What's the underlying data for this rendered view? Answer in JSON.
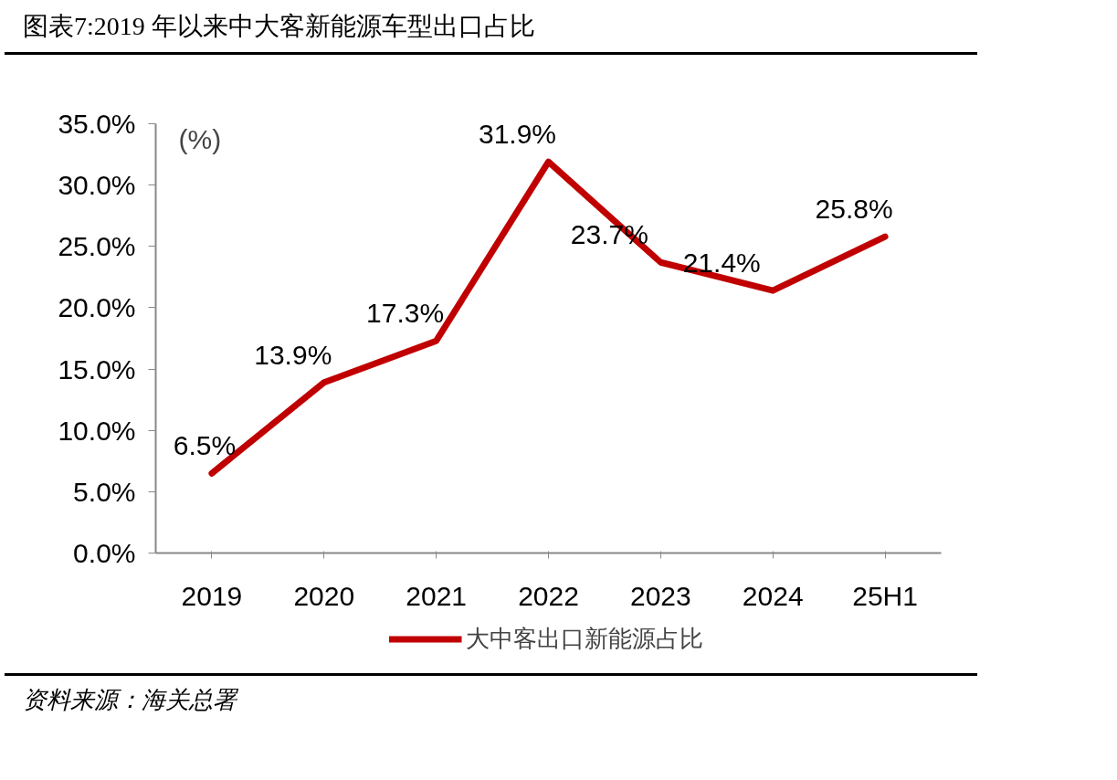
{
  "chart_data": {
    "type": "line",
    "title": "图表7:2019 年以来中大客新能源车型出口占比",
    "categories": [
      "2019",
      "2020",
      "2021",
      "2022",
      "2023",
      "2024",
      "25H1"
    ],
    "series": [
      {
        "name": "大中客出口新能源占比",
        "color": "#c00000",
        "values": [
          6.5,
          13.9,
          17.3,
          31.9,
          23.7,
          21.4,
          25.8
        ],
        "value_labels": [
          "6.5%",
          "13.9%",
          "17.3%",
          "31.9%",
          "23.7%",
          "21.4%",
          "25.8%"
        ]
      }
    ],
    "ylim": [
      0,
      35
    ],
    "yticks": [
      {
        "value": 0,
        "label": "0.0%"
      },
      {
        "value": 5,
        "label": "5.0%"
      },
      {
        "value": 10,
        "label": "10.0%"
      },
      {
        "value": 15,
        "label": "15.0%"
      },
      {
        "value": 20,
        "label": "20.0%"
      },
      {
        "value": 25,
        "label": "25.0%"
      },
      {
        "value": 30,
        "label": "30.0%"
      },
      {
        "value": 35,
        "label": "35.0%"
      }
    ],
    "grid": false,
    "legend": "bottom",
    "marker": "none",
    "line_style": "solid",
    "annotations": [
      "(%)",
      "资料来源：海关总署"
    ]
  }
}
